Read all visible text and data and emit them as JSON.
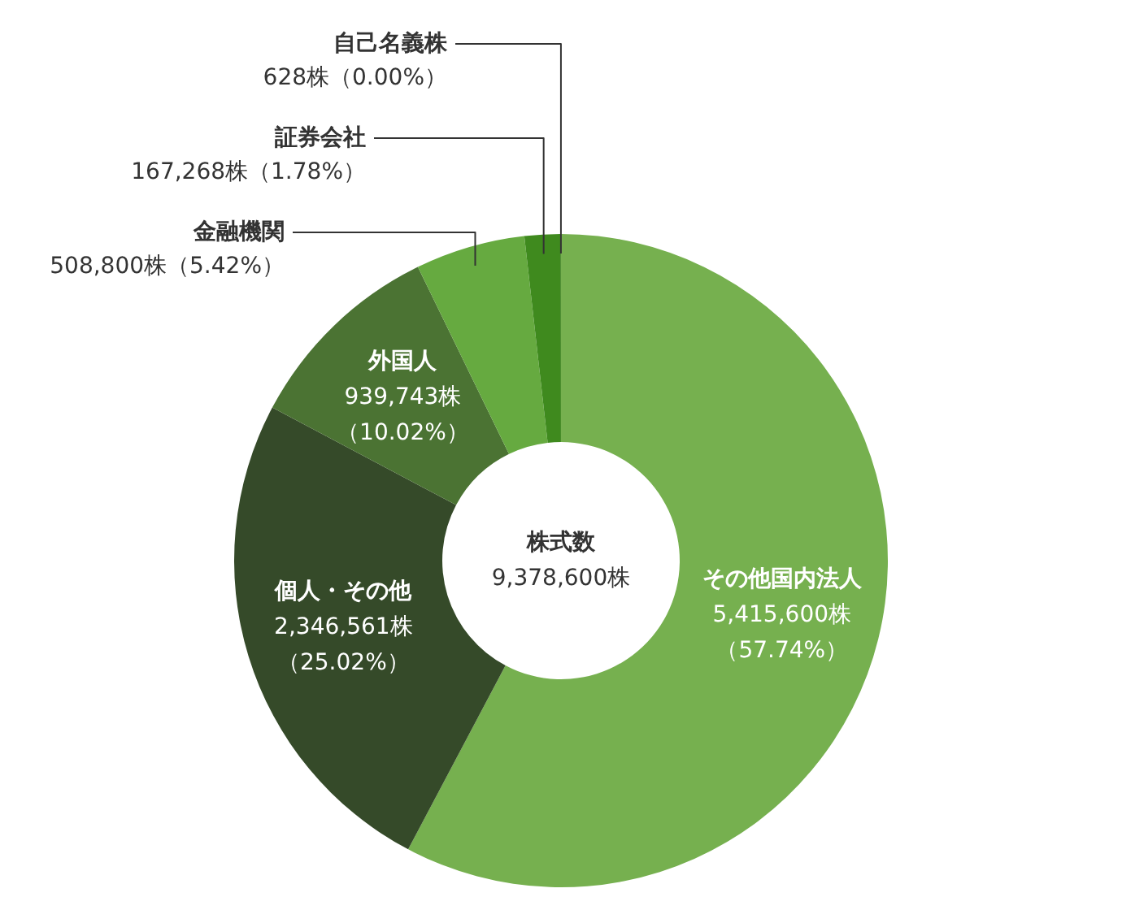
{
  "chart_data": {
    "type": "donut",
    "categories": [
      "その他国内法人",
      "個人・その他",
      "外国人",
      "金融機関",
      "証券会社",
      "自己名義株"
    ],
    "values": [
      5415600,
      2346561,
      939743,
      508800,
      167268,
      628
    ],
    "colors": [
      "#76b04f",
      "#354a29",
      "#4b7333",
      "#66aa40",
      "#3f8a1e",
      "#2a5a18"
    ],
    "value_labels": [
      "5,415,600株（57.74%）",
      "2,346,561株（25.02%）",
      "939,743株（10.02%）",
      "508,800株（5.42%）",
      "167,268株（1.78%）",
      "628株（0.00%）"
    ],
    "annotations": [
      "株式数",
      "9,378,600株"
    ]
  }
}
